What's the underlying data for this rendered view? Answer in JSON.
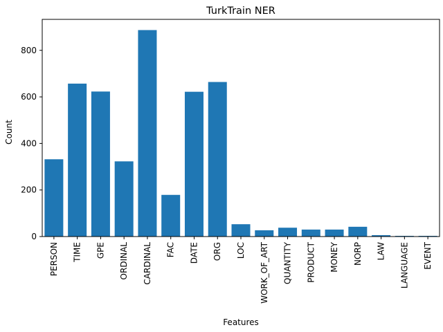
{
  "chart_data": {
    "type": "bar",
    "title": "TurkTrain NER",
    "xlabel": "Features",
    "ylabel": "Count",
    "categories": [
      "PERSON",
      "TIME",
      "GPE",
      "ORDINAL",
      "CARDINAL",
      "FAC",
      "DATE",
      "ORG",
      "LOC",
      "WORK_OF_ART",
      "QUANTITY",
      "PRODUCT",
      "MONEY",
      "NORP",
      "LAW",
      "LANGUAGE",
      "EVENT"
    ],
    "values": [
      332,
      657,
      623,
      323,
      887,
      179,
      622,
      664,
      53,
      27,
      38,
      30,
      30,
      42,
      6,
      3,
      3
    ],
    "ylim": [
      0,
      933
    ],
    "yticks": [
      0,
      200,
      400,
      600,
      800
    ],
    "grid": false,
    "legend": "none",
    "bar_color": "#1f77b4"
  }
}
